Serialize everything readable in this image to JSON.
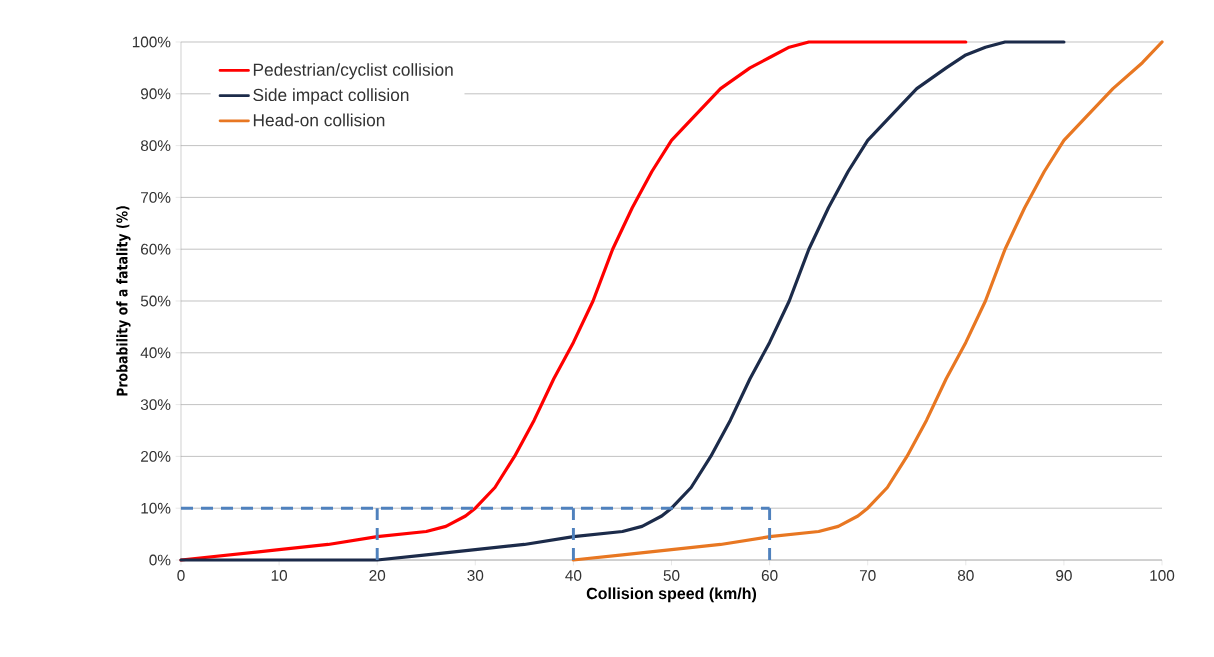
{
  "chart_data": {
    "type": "line",
    "xlabel": "Collision speed (km/h)",
    "ylabel": "Probability of a fatality (%)",
    "xlim": [
      0,
      100
    ],
    "xticks": [
      0,
      10,
      20,
      30,
      40,
      50,
      60,
      70,
      80,
      90,
      100
    ],
    "ylim": [
      0,
      100
    ],
    "yticks": [
      {
        "value": 0,
        "label": "0%"
      },
      {
        "value": 10,
        "label": "10%"
      },
      {
        "value": 20,
        "label": "20%"
      },
      {
        "value": 30,
        "label": "30%"
      },
      {
        "value": 40,
        "label": "40%"
      },
      {
        "value": 50,
        "label": "50%"
      },
      {
        "value": 60,
        "label": "60%"
      },
      {
        "value": 70,
        "label": "70%"
      },
      {
        "value": 80,
        "label": "80%"
      },
      {
        "value": 90,
        "label": "90%"
      },
      {
        "value": 100,
        "label": "100%"
      }
    ],
    "grid": "y",
    "legend": "top left",
    "marker": "none",
    "series": [
      {
        "name": "Pedestrian/cyclist collision",
        "color": "#ff0000",
        "line_style": "solid",
        "x": [
          0,
          5,
          10,
          15,
          20,
          25,
          27,
          29,
          30,
          32,
          34,
          36,
          38,
          40,
          42,
          44,
          46,
          48,
          50,
          52,
          55,
          58,
          60,
          62,
          64,
          66,
          70,
          75,
          80
        ],
        "values": [
          0,
          1,
          2,
          3,
          4.5,
          5.5,
          6.5,
          8.5,
          10,
          14,
          20,
          27,
          35,
          42,
          50,
          60,
          68,
          75,
          81,
          85,
          91,
          95,
          97,
          99,
          100,
          100,
          100,
          100,
          100
        ]
      },
      {
        "name": "Side impact collision",
        "color": "#1c2b4a",
        "line_style": "solid",
        "x": [
          0,
          10,
          20,
          25,
          30,
          35,
          40,
          45,
          47,
          49,
          50,
          52,
          54,
          56,
          58,
          60,
          62,
          64,
          66,
          68,
          70,
          72,
          75,
          78,
          80,
          82,
          84,
          86,
          90
        ],
        "values": [
          0,
          0,
          0,
          1,
          2,
          3,
          4.5,
          5.5,
          6.5,
          8.5,
          10,
          14,
          20,
          27,
          35,
          42,
          50,
          60,
          68,
          75,
          81,
          85,
          91,
          95,
          97.5,
          99,
          100,
          100,
          100
        ]
      },
      {
        "name": "Head-on collision",
        "color": "#e87722",
        "line_style": "solid",
        "x": [
          40,
          45,
          50,
          55,
          60,
          65,
          67,
          69,
          70,
          72,
          74,
          76,
          78,
          80,
          82,
          84,
          86,
          88,
          90,
          92,
          95,
          98,
          100
        ],
        "values": [
          0,
          1,
          2,
          3,
          4.5,
          5.5,
          6.5,
          8.5,
          10,
          14,
          20,
          27,
          35,
          42,
          50,
          60,
          68,
          75,
          81,
          85,
          91,
          96,
          100
        ]
      },
      {
        "color": "#4f81bd",
        "line_style": "dashed",
        "x": [
          0,
          60
        ],
        "values": [
          10,
          10
        ]
      },
      {
        "color": "#4f81bd",
        "line_style": "dashed",
        "x": [
          20,
          20
        ],
        "values": [
          0,
          10
        ]
      },
      {
        "color": "#4f81bd",
        "line_style": "dashed",
        "x": [
          40,
          40
        ],
        "values": [
          0,
          10
        ]
      },
      {
        "color": "#4f81bd",
        "line_style": "dashed",
        "x": [
          60,
          60
        ],
        "values": [
          0,
          10
        ]
      }
    ]
  }
}
